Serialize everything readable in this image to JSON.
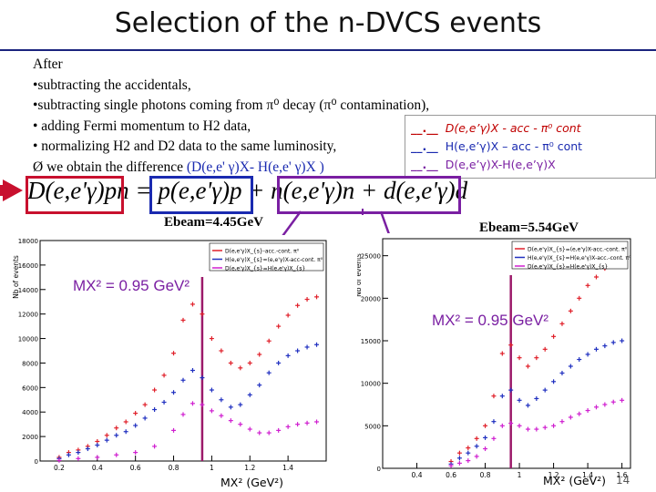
{
  "slide": {
    "title": "Selection of the n-DVCS events",
    "page_number": "14",
    "bullets": {
      "b0": "After",
      "b1": "•subtracting the accidentals,",
      "b2": "•subtracting single photons coming from π⁰ decay (π⁰ contamination),",
      "b3": "• adding Fermi momentum to H2 data,",
      "b4": "• normalizing H2 and D2 data to the same luminosity,",
      "b5a": "Ø  we obtain the difference ",
      "b5b": "(D(e,e' γ)X- H(e,e' γ)X )"
    },
    "legend": {
      "marker": "__.__",
      "red": "D(e,e’γ)X - acc - π⁰ cont",
      "blue": "H(e,e’γ)X – acc - π⁰ cont",
      "purple": "D(e,e’γ)X-H(e,e’γ)X"
    },
    "equation": "D(e,e'γ)pn = p(e,e'γ)p + n(e,e'γ)n + d(e,e'γ)d",
    "ebeam_left": "Ebeam=4.45GeV",
    "ebeam_right": "Ebeam=5.54GeV",
    "mx_left": "MX² = 0.95 GeV²",
    "mx_right": "MX² = 0.95 GeV²",
    "xlabel_left": "MX² (GeV²)",
    "xlabel_right": "MX² (GeV²)"
  },
  "colors": {
    "accent": "#1a237e",
    "red_series": "#e0202a",
    "blue_series": "#2030c0",
    "purple_series": "#d020d0",
    "box_red": "#c8102e",
    "box_blue": "#1a2ab0",
    "box_purple": "#7a1fa2"
  },
  "chart_data": [
    {
      "type": "scatter",
      "title": "Ebeam=4.45GeV",
      "xlabel": "MX² (GeV²)",
      "ylabel": "Nb of events",
      "xlim": [
        0.1,
        1.6
      ],
      "ylim": [
        0,
        18000
      ],
      "yticks": [
        0,
        2000,
        4000,
        6000,
        8000,
        10000,
        12000,
        14000,
        16000,
        18000
      ],
      "xticks": [
        0.2,
        0.4,
        0.6,
        0.8,
        1,
        1.2,
        1.4
      ],
      "legend": [
        "D(e,e'γ)X_{s}-acc.-cont. π⁰",
        "H(e,e'γ)X_{s}=(e,e'γ)X-acc-cont. π⁰",
        "D(e,e'γ)X_{s}=H(e,e'γ)X_{s}"
      ],
      "vline": 0.95,
      "series": [
        {
          "name": "D(e,e'γ)X_{s}-acc.-cont. π⁰",
          "color": "#e0202a",
          "x": [
            0.2,
            0.25,
            0.3,
            0.35,
            0.4,
            0.45,
            0.5,
            0.55,
            0.6,
            0.65,
            0.7,
            0.75,
            0.8,
            0.85,
            0.9,
            0.95,
            1.0,
            1.05,
            1.1,
            1.15,
            1.2,
            1.25,
            1.3,
            1.35,
            1.4,
            1.45,
            1.5,
            1.55
          ],
          "y": [
            300,
            700,
            900,
            1200,
            1600,
            2100,
            2700,
            3200,
            3900,
            4600,
            5800,
            7000,
            8800,
            11500,
            12800,
            12000,
            10000,
            9000,
            8000,
            7600,
            8000,
            8700,
            9800,
            11000,
            11900,
            12700,
            13200,
            13400
          ]
        },
        {
          "name": "H(e,e'γ)X_{s}=(e,e'γ)X-acc-cont. π⁰",
          "color": "#2030c0",
          "x": [
            0.2,
            0.25,
            0.3,
            0.35,
            0.4,
            0.45,
            0.5,
            0.55,
            0.6,
            0.65,
            0.7,
            0.75,
            0.8,
            0.85,
            0.9,
            0.95,
            1.0,
            1.05,
            1.1,
            1.15,
            1.2,
            1.25,
            1.3,
            1.35,
            1.4,
            1.45,
            1.5,
            1.55
          ],
          "y": [
            200,
            500,
            700,
            1000,
            1300,
            1700,
            2100,
            2400,
            2900,
            3500,
            4200,
            4800,
            5600,
            6600,
            7400,
            6800,
            5800,
            5000,
            4400,
            4600,
            5400,
            6200,
            7200,
            8000,
            8600,
            9000,
            9300,
            9500
          ]
        },
        {
          "name": "D(e,e'γ)X_{s}=H(e,e'γ)X_{s}",
          "color": "#d020d0",
          "x": [
            0.2,
            0.3,
            0.4,
            0.5,
            0.6,
            0.7,
            0.8,
            0.85,
            0.9,
            0.95,
            1.0,
            1.05,
            1.1,
            1.15,
            1.2,
            1.25,
            1.3,
            1.35,
            1.4,
            1.45,
            1.5,
            1.55
          ],
          "y": [
            50,
            200,
            300,
            500,
            700,
            1200,
            2500,
            3800,
            4700,
            4600,
            4100,
            3700,
            3300,
            3000,
            2600,
            2300,
            2300,
            2500,
            2800,
            3000,
            3100,
            3200
          ]
        }
      ]
    },
    {
      "type": "scatter",
      "title": "Ebeam=5.54GeV",
      "xlabel": "MX² (GeV²)",
      "ylabel": "Nb of events",
      "xlim": [
        0.2,
        1.65
      ],
      "ylim": [
        0,
        27000
      ],
      "yticks": [
        0,
        5000,
        10000,
        15000,
        20000,
        25000
      ],
      "xticks": [
        0.4,
        0.6,
        0.8,
        1,
        1.2,
        1.4,
        1.6
      ],
      "legend": [
        "D(e,e'γ)X_{s}=(e,e'γ)X-acc.-cont. π⁰",
        "H(e,e'γ)X_{s}=H(e,e'γ)X-acc.-cont. π⁰",
        "D(e,e'γ)X_{s}=H(e,e'γ)X_{s}"
      ],
      "vline": 0.95,
      "series": [
        {
          "name": "D(e,e'γ)X_{s}=(e,e'γ)X-acc.-cont. π⁰",
          "color": "#e0202a",
          "x": [
            0.6,
            0.65,
            0.7,
            0.75,
            0.8,
            0.85,
            0.9,
            0.95,
            1.0,
            1.05,
            1.1,
            1.15,
            1.2,
            1.25,
            1.3,
            1.35,
            1.4,
            1.45,
            1.5,
            1.55,
            1.6
          ],
          "y": [
            800,
            1800,
            2400,
            3500,
            5000,
            8500,
            13500,
            14500,
            13000,
            12000,
            13000,
            14000,
            15500,
            17000,
            18500,
            20000,
            21500,
            22500,
            23500,
            24000,
            24500
          ]
        },
        {
          "name": "H(e,e'γ)X_{s}=H(e,e'γ)X-acc.-cont. π⁰",
          "color": "#2030c0",
          "x": [
            0.6,
            0.65,
            0.7,
            0.75,
            0.8,
            0.85,
            0.9,
            0.95,
            1.0,
            1.05,
            1.1,
            1.15,
            1.2,
            1.25,
            1.3,
            1.35,
            1.4,
            1.45,
            1.5,
            1.55,
            1.6
          ],
          "y": [
            500,
            1200,
            1800,
            2600,
            3600,
            5500,
            8500,
            9200,
            8000,
            7400,
            8200,
            9200,
            10200,
            11200,
            12000,
            12800,
            13400,
            14000,
            14400,
            14800,
            15000
          ]
        },
        {
          "name": "D(e,e'γ)X_{s}=H(e,e'γ)X_{s}",
          "color": "#d020d0",
          "x": [
            0.6,
            0.65,
            0.7,
            0.75,
            0.8,
            0.85,
            0.9,
            0.95,
            1.0,
            1.05,
            1.1,
            1.15,
            1.2,
            1.25,
            1.3,
            1.35,
            1.4,
            1.45,
            1.5,
            1.55,
            1.6
          ],
          "y": [
            300,
            600,
            900,
            1400,
            2300,
            3500,
            5000,
            5300,
            5000,
            4600,
            4600,
            4800,
            5000,
            5500,
            6000,
            6400,
            6800,
            7200,
            7500,
            7800,
            8000
          ]
        }
      ]
    }
  ]
}
